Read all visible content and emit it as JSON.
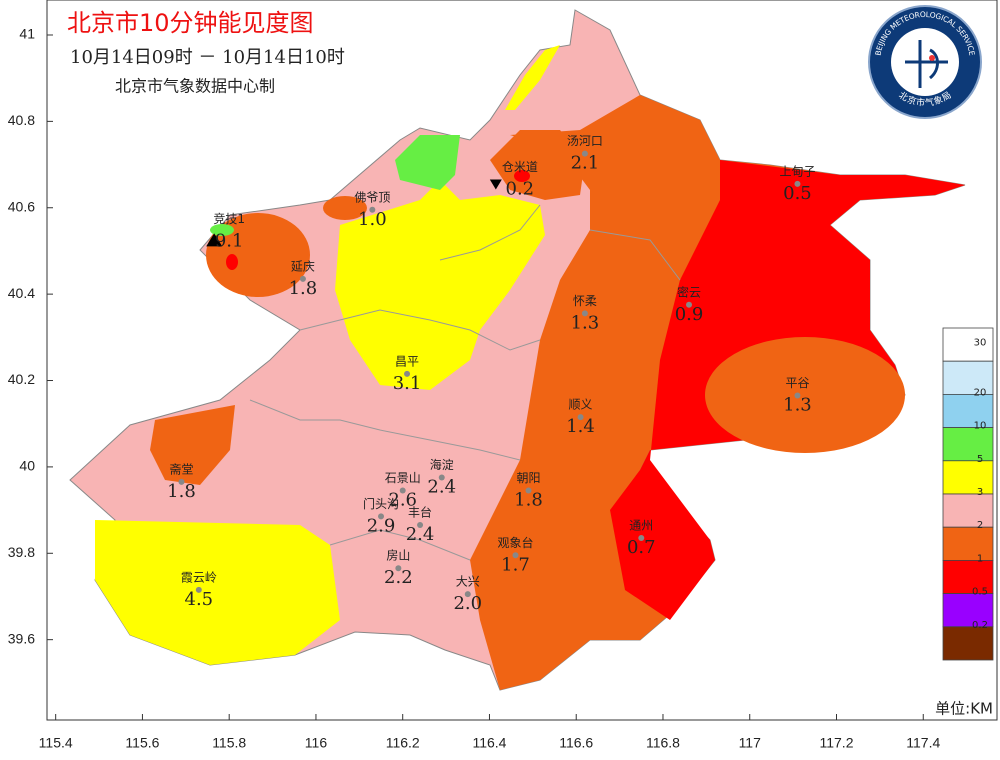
{
  "title": "北京市10分钟能见度图",
  "time_range": "10月14日09时  －  10月14日10时",
  "producer": "北京市气象数据中心制",
  "logo": {
    "text_en": "BEIJING METEOROLOGICAL SERVICE",
    "text_cn": "北京市气象局"
  },
  "axes": {
    "xlim": [
      115.38,
      117.57
    ],
    "ylim": [
      39.414,
      41.081
    ],
    "xticks": [
      115.4,
      115.6,
      115.8,
      116,
      116.2,
      116.4,
      116.6,
      116.8,
      117,
      117.2,
      117.4
    ],
    "yticks": [
      39.6,
      39.8,
      40,
      40.2,
      40.4,
      40.6,
      40.8,
      41
    ]
  },
  "stations": [
    {
      "name": "汤河口",
      "value": 2.1,
      "lon": 116.62,
      "lat": 40.73
    },
    {
      "name": "上甸子",
      "value": 0.5,
      "lon": 117.11,
      "lat": 40.66
    },
    {
      "name": "仓米道",
      "value": 0.2,
      "lon": 116.47,
      "lat": 40.67,
      "marker": "triangle-down"
    },
    {
      "name": "竞技1",
      "value": 9.1,
      "lon": 115.8,
      "lat": 40.55,
      "marker": "triangle-up"
    },
    {
      "name": "佛爷顶",
      "value": 1,
      "label": "1.0",
      "lon": 116.13,
      "lat": 40.6
    },
    {
      "name": "延庆",
      "value": 1.8,
      "lon": 115.97,
      "lat": 40.44
    },
    {
      "name": "怀柔",
      "value": 1.3,
      "lon": 116.62,
      "lat": 40.36
    },
    {
      "name": "密云",
      "value": 0.9,
      "lon": 116.86,
      "lat": 40.38
    },
    {
      "name": "昌平",
      "value": 3.1,
      "lon": 116.21,
      "lat": 40.22
    },
    {
      "name": "平谷",
      "value": 1.3,
      "lon": 117.11,
      "lat": 40.17
    },
    {
      "name": "顺义",
      "value": 1.4,
      "lon": 116.61,
      "lat": 40.12
    },
    {
      "name": "海淀",
      "value": 2.4,
      "lon": 116.29,
      "lat": 39.98
    },
    {
      "name": "石景山",
      "value": 2.6,
      "lon": 116.2,
      "lat": 39.95
    },
    {
      "name": "朝阳",
      "value": 1.8,
      "lon": 116.49,
      "lat": 39.95
    },
    {
      "name": "门头沟",
      "value": 2.9,
      "lon": 116.15,
      "lat": 39.89
    },
    {
      "name": "丰台",
      "value": 2.4,
      "lon": 116.24,
      "lat": 39.87
    },
    {
      "name": "斋堂",
      "value": 1.8,
      "lon": 115.69,
      "lat": 39.97
    },
    {
      "name": "通州",
      "value": 0.7,
      "lon": 116.75,
      "lat": 39.84
    },
    {
      "name": "观象台",
      "value": 1.7,
      "lon": 116.46,
      "lat": 39.8
    },
    {
      "name": "房山",
      "value": 2.2,
      "lon": 116.19,
      "lat": 39.77
    },
    {
      "name": "霞云岭",
      "value": 4.5,
      "lon": 115.73,
      "lat": 39.72
    },
    {
      "name": "大兴",
      "value": 2,
      "label": "2.0",
      "lon": 116.35,
      "lat": 39.71
    }
  ],
  "legend": {
    "unit": "单位:KM",
    "colors": [
      "#ffffff",
      "#cde9f8",
      "#8fd1ef",
      "#66ee44",
      "#ffff00",
      "#f8b4b4",
      "#f06414",
      "#ff0000",
      "#9900ff",
      "#7a2a00"
    ],
    "labels": [
      30,
      20,
      10,
      5,
      3,
      2,
      1,
      0.5,
      0.2
    ]
  }
}
